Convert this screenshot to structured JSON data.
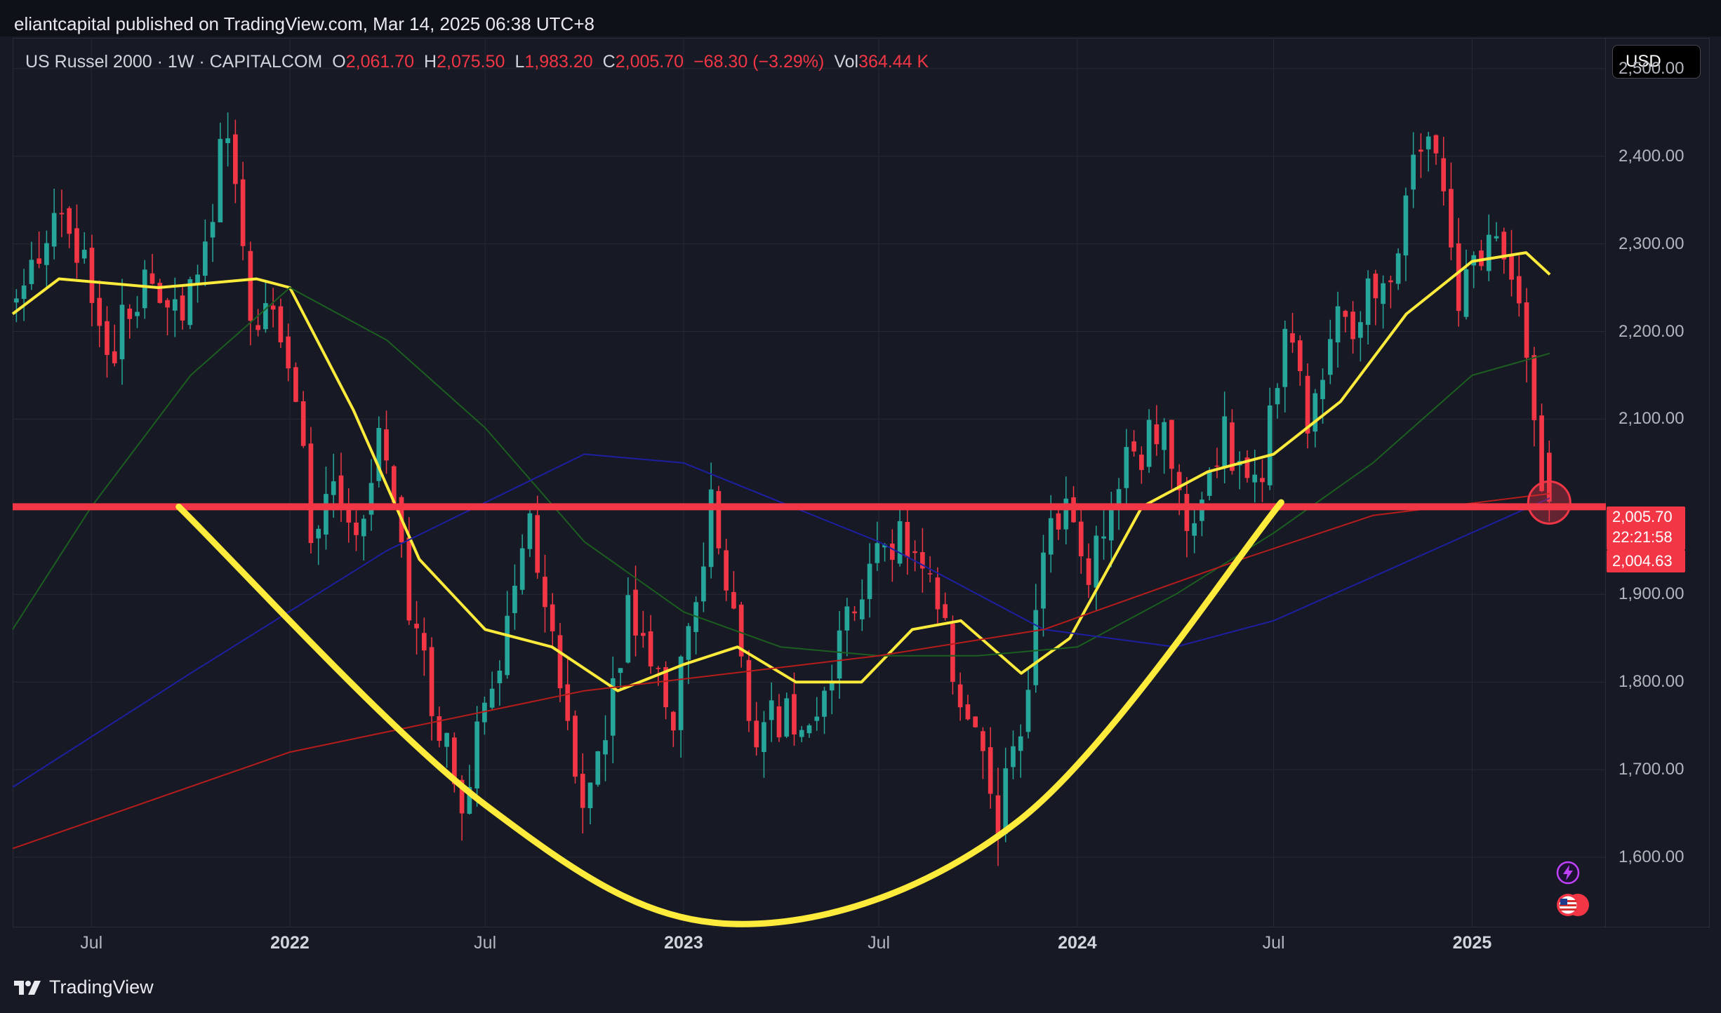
{
  "publish_line": "eliantcapital published on TradingView.com, Mar 14, 2025 06:38 UTC+8",
  "legend": {
    "symbol": "US Russel 2000 · 1W · CAPITALCOM",
    "open_label": "O",
    "open_value": "2,061.70",
    "high_label": "H",
    "high_value": "2,075.50",
    "low_label": "L",
    "low_value": "1,983.20",
    "close_label": "C",
    "close_value": "2,005.70",
    "change": "−68.30 (−3.29%)",
    "vol_label": "Vol",
    "vol_value": "364.44 K"
  },
  "currency": "USD",
  "price_tags": {
    "last_price": "2,005.70",
    "countdown": "22:21:58",
    "ma_value": "2,004.63"
  },
  "footer": {
    "brand": "TradingView"
  },
  "icons": {
    "bolt": "lightning-bolt-icon",
    "flag": "us-flag-icon",
    "logo": "tradingview-logo-icon"
  },
  "colors": {
    "up": "#26a69a",
    "down": "#f23645",
    "ma_fast": "#ffeb3b",
    "ma_green": "#1b5e20",
    "ma_blue": "#1e1ea0",
    "ma_red": "#b71c1c",
    "support_line": "#f23645",
    "cup_curve": "#ffeb3b"
  },
  "chart_data": {
    "type": "candlestick",
    "title": "US Russel 2000 · 1W · CAPITALCOM",
    "yaxis": {
      "ticks": [
        1600,
        1700,
        1800,
        1900,
        2000,
        2100,
        2200,
        2300,
        2400,
        2500
      ],
      "tick_labels": [
        "1,600.00",
        "1,700.00",
        "1,800.00",
        "1,900.00",
        "",
        "2,100.00",
        "2,200.00",
        "2,300.00",
        "2,400.00",
        "2,500.00"
      ],
      "range": [
        1520,
        2535
      ],
      "side": "right"
    },
    "xaxis": {
      "range": [
        "2021-04-19",
        "2025-05-05"
      ],
      "ticks": [
        {
          "date": "2021-07-01",
          "label": "Jul",
          "major": false
        },
        {
          "date": "2022-01-01",
          "label": "2022",
          "major": true
        },
        {
          "date": "2022-07-01",
          "label": "Jul",
          "major": false
        },
        {
          "date": "2023-01-01",
          "label": "2023",
          "major": true
        },
        {
          "date": "2023-07-01",
          "label": "Jul",
          "major": false
        },
        {
          "date": "2024-01-01",
          "label": "2024",
          "major": true
        },
        {
          "date": "2024-07-01",
          "label": "Jul",
          "major": false
        },
        {
          "date": "2025-01-01",
          "label": "2025",
          "major": true
        }
      ]
    },
    "grid": true,
    "price_path": [
      [
        "2021-04-19",
        2240
      ],
      [
        "2021-05-10",
        2270
      ],
      [
        "2021-06-07",
        2320
      ],
      [
        "2021-06-28",
        2270
      ],
      [
        "2021-07-19",
        2150
      ],
      [
        "2021-08-09",
        2230
      ],
      [
        "2021-08-30",
        2270
      ],
      [
        "2021-09-27",
        2200
      ],
      [
        "2021-10-18",
        2290
      ],
      [
        "2021-11-08",
        2440
      ],
      [
        "2021-11-29",
        2190
      ],
      [
        "2021-12-20",
        2230
      ],
      [
        "2022-01-10",
        2140
      ],
      [
        "2022-01-24",
        1960
      ],
      [
        "2022-02-14",
        2000
      ],
      [
        "2022-03-07",
        1960
      ],
      [
        "2022-03-28",
        2100
      ],
      [
        "2022-04-25",
        1900
      ],
      [
        "2022-05-16",
        1760
      ],
      [
        "2022-06-13",
        1680
      ],
      [
        "2022-07-04",
        1760
      ],
      [
        "2022-08-15",
        2000
      ],
      [
        "2022-09-05",
        1840
      ],
      [
        "2022-09-26",
        1680
      ],
      [
        "2022-10-10",
        1690
      ],
      [
        "2022-11-14",
        1870
      ],
      [
        "2022-12-26",
        1760
      ],
      [
        "2023-01-30",
        1990
      ],
      [
        "2023-03-13",
        1740
      ],
      [
        "2023-04-10",
        1770
      ],
      [
        "2023-05-08",
        1760
      ],
      [
        "2023-06-12",
        1890
      ],
      [
        "2023-07-24",
        1980
      ],
      [
        "2023-08-28",
        1880
      ],
      [
        "2023-09-18",
        1800
      ],
      [
        "2023-10-23",
        1650
      ],
      [
        "2023-11-06",
        1700
      ],
      [
        "2023-12-04",
        1930
      ],
      [
        "2023-12-25",
        2020
      ],
      [
        "2024-01-15",
        1940
      ],
      [
        "2024-02-19",
        2040
      ],
      [
        "2024-03-25",
        2110
      ],
      [
        "2024-04-15",
        1970
      ],
      [
        "2024-05-20",
        2080
      ],
      [
        "2024-06-24",
        2020
      ],
      [
        "2024-07-15",
        2230
      ],
      [
        "2024-08-05",
        2100
      ],
      [
        "2024-09-02",
        2200
      ],
      [
        "2024-09-30",
        2240
      ],
      [
        "2024-10-21",
        2260
      ],
      [
        "2024-11-11",
        2420
      ],
      [
        "2024-11-25",
        2430
      ],
      [
        "2024-12-23",
        2240
      ],
      [
        "2025-01-20",
        2300
      ],
      [
        "2025-02-10",
        2260
      ],
      [
        "2025-02-24",
        2170
      ],
      [
        "2025-03-10",
        2005.7
      ]
    ],
    "last_candle": {
      "date": "2025-03-10",
      "open": 2061.7,
      "high": 2075.5,
      "low": 1983.2,
      "close": 2005.7
    },
    "moving_averages": [
      {
        "color": "#ffeb3b",
        "points": [
          [
            "2021-04-19",
            2220
          ],
          [
            "2021-06-01",
            2260
          ],
          [
            "2021-09-01",
            2250
          ],
          [
            "2021-12-01",
            2260
          ],
          [
            "2022-01-01",
            2250
          ],
          [
            "2022-03-01",
            2110
          ],
          [
            "2022-05-01",
            1940
          ],
          [
            "2022-07-01",
            1860
          ],
          [
            "2022-09-01",
            1840
          ],
          [
            "2022-11-01",
            1790
          ],
          [
            "2023-01-01",
            1820
          ],
          [
            "2023-02-20",
            1840
          ],
          [
            "2023-04-15",
            1800
          ],
          [
            "2023-06-15",
            1800
          ],
          [
            "2023-08-01",
            1860
          ],
          [
            "2023-09-15",
            1870
          ],
          [
            "2023-11-10",
            1810
          ],
          [
            "2023-12-25",
            1850
          ],
          [
            "2024-03-01",
            2000
          ],
          [
            "2024-05-01",
            2040
          ],
          [
            "2024-07-01",
            2060
          ],
          [
            "2024-09-01",
            2120
          ],
          [
            "2024-11-01",
            2220
          ],
          [
            "2025-01-01",
            2280
          ],
          [
            "2025-02-20",
            2290
          ],
          [
            "2025-03-14",
            2265
          ]
        ]
      },
      {
        "color": "#1b5e20",
        "points": [
          [
            "2021-04-19",
            1860
          ],
          [
            "2021-07-01",
            2000
          ],
          [
            "2021-10-01",
            2150
          ],
          [
            "2022-01-01",
            2250
          ],
          [
            "2022-04-01",
            2190
          ],
          [
            "2022-07-01",
            2090
          ],
          [
            "2022-10-01",
            1960
          ],
          [
            "2023-01-01",
            1880
          ],
          [
            "2023-04-01",
            1840
          ],
          [
            "2023-07-01",
            1830
          ],
          [
            "2023-10-01",
            1830
          ],
          [
            "2024-01-01",
            1840
          ],
          [
            "2024-04-01",
            1900
          ],
          [
            "2024-07-01",
            1970
          ],
          [
            "2024-10-01",
            2050
          ],
          [
            "2025-01-01",
            2150
          ],
          [
            "2025-03-14",
            2175
          ]
        ]
      },
      {
        "color": "#1e1ea0",
        "points": [
          [
            "2021-04-19",
            1680
          ],
          [
            "2021-10-01",
            1810
          ],
          [
            "2022-04-01",
            1950
          ],
          [
            "2022-10-01",
            2060
          ],
          [
            "2023-01-01",
            2050
          ],
          [
            "2023-07-01",
            1960
          ],
          [
            "2023-12-01",
            1860
          ],
          [
            "2024-04-01",
            1840
          ],
          [
            "2024-07-01",
            1870
          ],
          [
            "2024-10-01",
            1920
          ],
          [
            "2025-03-14",
            2010
          ]
        ]
      },
      {
        "color": "#b71c1c",
        "points": [
          [
            "2021-04-19",
            1610
          ],
          [
            "2022-01-01",
            1720
          ],
          [
            "2022-10-01",
            1790
          ],
          [
            "2023-07-01",
            1830
          ],
          [
            "2023-12-01",
            1860
          ],
          [
            "2024-06-01",
            1940
          ],
          [
            "2024-10-01",
            1990
          ],
          [
            "2025-03-14",
            2015
          ]
        ]
      }
    ],
    "annotations": [
      {
        "type": "horizontal_line",
        "price": 2000,
        "color": "#f23645"
      },
      {
        "type": "cup_curve",
        "color": "#ffeb3b",
        "points": [
          [
            "2021-09-20",
            2000
          ],
          [
            "2022-07-01",
            1660
          ],
          [
            "2023-02-15",
            1524
          ],
          [
            "2023-11-06",
            1640
          ],
          [
            "2024-07-08",
            2005
          ]
        ]
      },
      {
        "type": "circle_marker",
        "date": "2025-03-10",
        "price": 2008
      }
    ]
  }
}
